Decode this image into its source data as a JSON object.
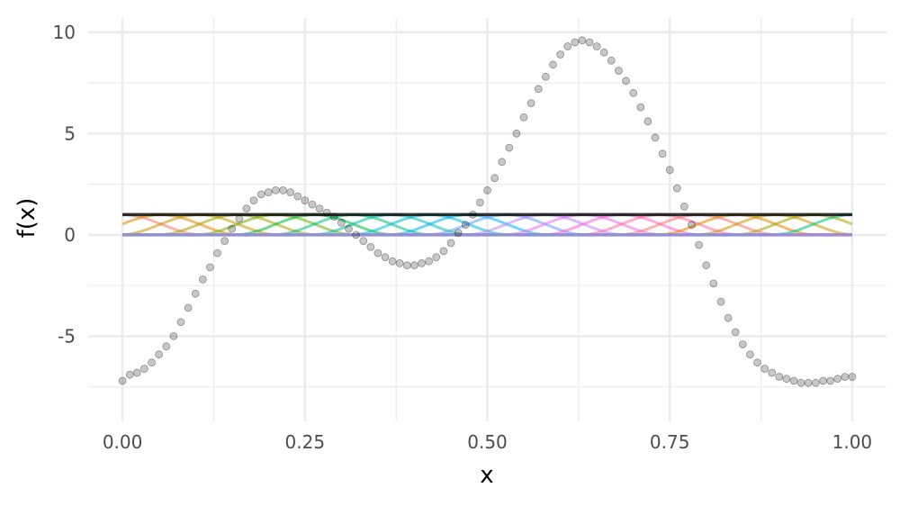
{
  "chart_data": {
    "type": "scatter",
    "title": "",
    "xlabel": "x",
    "ylabel": "f(x)",
    "xlim": [
      -0.047,
      1.047
    ],
    "ylim": [
      -9.2,
      10.7
    ],
    "x_ticks": [
      0,
      0.25,
      0.5,
      0.75,
      1
    ],
    "x_tick_labels": [
      "0.00",
      "0.25",
      "0.50",
      "0.75",
      "1.00"
    ],
    "y_ticks": [
      -5,
      0,
      5,
      10
    ],
    "y_tick_labels": [
      "-5",
      "0",
      "5",
      "10"
    ],
    "x_minor_ticks": [
      0.125,
      0.375,
      0.625,
      0.875
    ],
    "y_minor_ticks": [
      -7.5,
      -2.5,
      2.5,
      7.5
    ],
    "grid": true,
    "legend": "none",
    "points": {
      "color": "#000000",
      "opacity": 0.22,
      "x": [
        0.0,
        0.01,
        0.02,
        0.03,
        0.04,
        0.05,
        0.06,
        0.07,
        0.08,
        0.09,
        0.1,
        0.11,
        0.12,
        0.13,
        0.14,
        0.15,
        0.16,
        0.17,
        0.18,
        0.19,
        0.2,
        0.21,
        0.22,
        0.23,
        0.24,
        0.25,
        0.26,
        0.27,
        0.28,
        0.29,
        0.3,
        0.31,
        0.32,
        0.33,
        0.34,
        0.35,
        0.36,
        0.37,
        0.38,
        0.39,
        0.4,
        0.41,
        0.42,
        0.43,
        0.44,
        0.45,
        0.46,
        0.47,
        0.48,
        0.49,
        0.5,
        0.51,
        0.52,
        0.53,
        0.54,
        0.55,
        0.56,
        0.57,
        0.58,
        0.59,
        0.6,
        0.61,
        0.62,
        0.63,
        0.64,
        0.65,
        0.66,
        0.67,
        0.68,
        0.69,
        0.7,
        0.71,
        0.72,
        0.73,
        0.74,
        0.75,
        0.76,
        0.77,
        0.78,
        0.79,
        0.8,
        0.81,
        0.82,
        0.83,
        0.84,
        0.85,
        0.86,
        0.87,
        0.88,
        0.89,
        0.9,
        0.91,
        0.92,
        0.93,
        0.94,
        0.95,
        0.96,
        0.97,
        0.98,
        0.99,
        1.0
      ],
      "y": [
        -7.2,
        -6.9,
        -6.8,
        -6.6,
        -6.3,
        -5.9,
        -5.5,
        -5.0,
        -4.3,
        -3.6,
        -2.9,
        -2.2,
        -1.6,
        -0.9,
        -0.3,
        0.3,
        0.8,
        1.3,
        1.7,
        2.0,
        2.1,
        2.2,
        2.2,
        2.1,
        1.9,
        1.7,
        1.5,
        1.3,
        1.1,
        0.9,
        0.6,
        0.3,
        0.0,
        -0.3,
        -0.6,
        -0.9,
        -1.1,
        -1.3,
        -1.4,
        -1.5,
        -1.5,
        -1.4,
        -1.3,
        -1.1,
        -0.8,
        -0.4,
        0.1,
        0.5,
        1.0,
        1.6,
        2.2,
        2.8,
        3.6,
        4.3,
        5.0,
        5.8,
        6.5,
        7.2,
        7.8,
        8.4,
        8.9,
        9.3,
        9.5,
        9.6,
        9.5,
        9.3,
        9.0,
        8.6,
        8.1,
        7.6,
        7.0,
        6.3,
        5.6,
        4.8,
        4.0,
        3.2,
        2.3,
        1.4,
        0.5,
        -0.5,
        -1.5,
        -2.4,
        -3.3,
        -4.1,
        -4.8,
        -5.4,
        -5.9,
        -6.3,
        -6.6,
        -6.8,
        -7.0,
        -7.1,
        -7.2,
        -7.3,
        -7.3,
        -7.3,
        -7.2,
        -7.2,
        -7.1,
        -7.0,
        -7.0
      ]
    },
    "basis": {
      "num_functions": 20,
      "colors": [
        "#F8766D",
        "#E58700",
        "#C99800",
        "#A3A500",
        "#6BB100",
        "#00BA38",
        "#00BF7D",
        "#00C0AF",
        "#00BCD8",
        "#00B0F6",
        "#619CFF",
        "#B983FF",
        "#E76BF3",
        "#FD61D1",
        "#FF67A4",
        "#F8766D",
        "#E58700",
        "#C99800",
        "#A3A500",
        "#00BF7D"
      ],
      "opacity": 0.55,
      "min": 0,
      "max": 1
    },
    "sum_line": {
      "value": 1,
      "color": "#000000"
    }
  },
  "colors": {
    "grid": "#ebebeb",
    "background": "#ffffff"
  }
}
